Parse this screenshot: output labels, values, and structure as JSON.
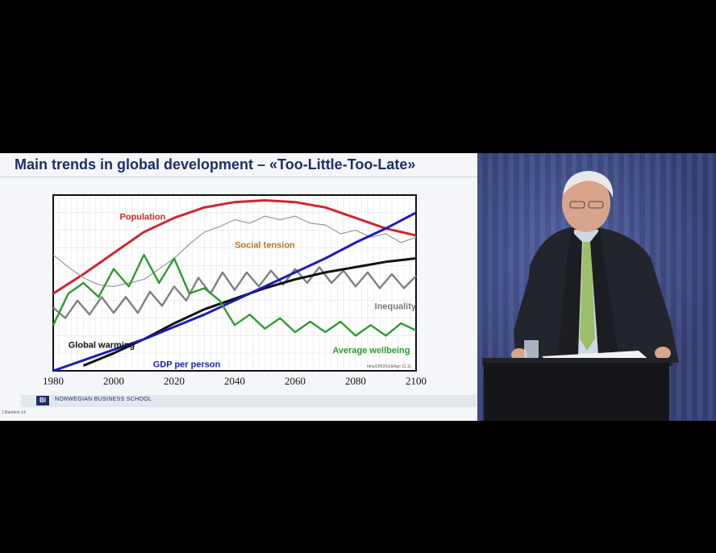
{
  "slide": {
    "title": "Main trends in global development  –  «Too-Little-Too-Late»",
    "logo_text": "NORWEGIAN BUSINESS SCHOOL",
    "logo_mark": "BI",
    "footer": "J Randers 14"
  },
  "chart_data": {
    "type": "line",
    "title": "",
    "xlabel": "",
    "ylabel": "",
    "xlim": [
      1980,
      2100
    ],
    "ylim": [
      0,
      100
    ],
    "grid": true,
    "x_ticks": [
      "1980",
      "2000",
      "2020",
      "2040",
      "2060",
      "2080",
      "2100"
    ],
    "source_note": "ntnu/2052/LE&Ago 11.11",
    "series": [
      {
        "name": "Population",
        "color": "#d0262f",
        "label_color": "#d0262f",
        "x": [
          1980,
          1990,
          2000,
          2010,
          2020,
          2030,
          2040,
          2050,
          2060,
          2070,
          2080,
          2090,
          2100
        ],
        "y": [
          44,
          55,
          67,
          79,
          87,
          93,
          96,
          97,
          96,
          93,
          87,
          81,
          77
        ]
      },
      {
        "name": "Social tension",
        "color": "#9a9a9a",
        "label_color": "#b07820",
        "x": [
          1980,
          1985,
          1990,
          1995,
          2000,
          2005,
          2010,
          2015,
          2020,
          2025,
          2030,
          2035,
          2040,
          2045,
          2050,
          2055,
          2060,
          2065,
          2070,
          2075,
          2080,
          2085,
          2090,
          2095,
          2100
        ],
        "y": [
          66,
          59,
          53,
          49,
          48,
          50,
          52,
          58,
          64,
          72,
          79,
          82,
          86,
          84,
          88,
          86,
          88,
          84,
          83,
          78,
          80,
          76,
          78,
          73,
          76
        ]
      },
      {
        "name": "Inequality",
        "color": "#808080",
        "label_color": "#7a7a7a",
        "x": [
          1980,
          1984,
          1988,
          1992,
          1996,
          2000,
          2004,
          2008,
          2012,
          2016,
          2020,
          2024,
          2028,
          2032,
          2036,
          2040,
          2044,
          2048,
          2052,
          2056,
          2060,
          2064,
          2068,
          2072,
          2076,
          2080,
          2084,
          2088,
          2092,
          2096,
          2100
        ],
        "y": [
          36,
          30,
          40,
          32,
          42,
          33,
          42,
          33,
          45,
          37,
          48,
          40,
          53,
          44,
          56,
          46,
          56,
          48,
          57,
          49,
          58,
          50,
          59,
          50,
          57,
          48,
          56,
          47,
          55,
          47,
          54
        ]
      },
      {
        "name": "Global warming",
        "color": "#111111",
        "label_color": "#111111",
        "x": [
          1990,
          2000,
          2010,
          2020,
          2030,
          2040,
          2050,
          2060,
          2070,
          2080,
          2090,
          2100
        ],
        "y": [
          3,
          10,
          18,
          27,
          35,
          41,
          47,
          52,
          56,
          59,
          62,
          64
        ]
      },
      {
        "name": "GDP per person",
        "color": "#1c1cb8",
        "label_color": "#1c1cb8",
        "x": [
          1980,
          1990,
          2000,
          2010,
          2020,
          2030,
          2040,
          2050,
          2060,
          2070,
          2080,
          2090,
          2100
        ],
        "y": [
          0,
          6,
          12,
          18,
          25,
          32,
          40,
          48,
          56,
          64,
          73,
          81,
          90
        ]
      },
      {
        "name": "Average wellbeing",
        "color": "#2f9a2f",
        "label_color": "#2f9a2f",
        "x": [
          1980,
          1985,
          1990,
          1995,
          2000,
          2005,
          2010,
          2015,
          2020,
          2025,
          2030,
          2035,
          2040,
          2045,
          2050,
          2055,
          2060,
          2065,
          2070,
          2075,
          2080,
          2085,
          2090,
          2095,
          2100
        ],
        "y": [
          26,
          44,
          50,
          42,
          58,
          48,
          66,
          50,
          64,
          44,
          47,
          40,
          26,
          32,
          24,
          30,
          22,
          28,
          22,
          28,
          20,
          26,
          20,
          27,
          23
        ]
      }
    ]
  }
}
